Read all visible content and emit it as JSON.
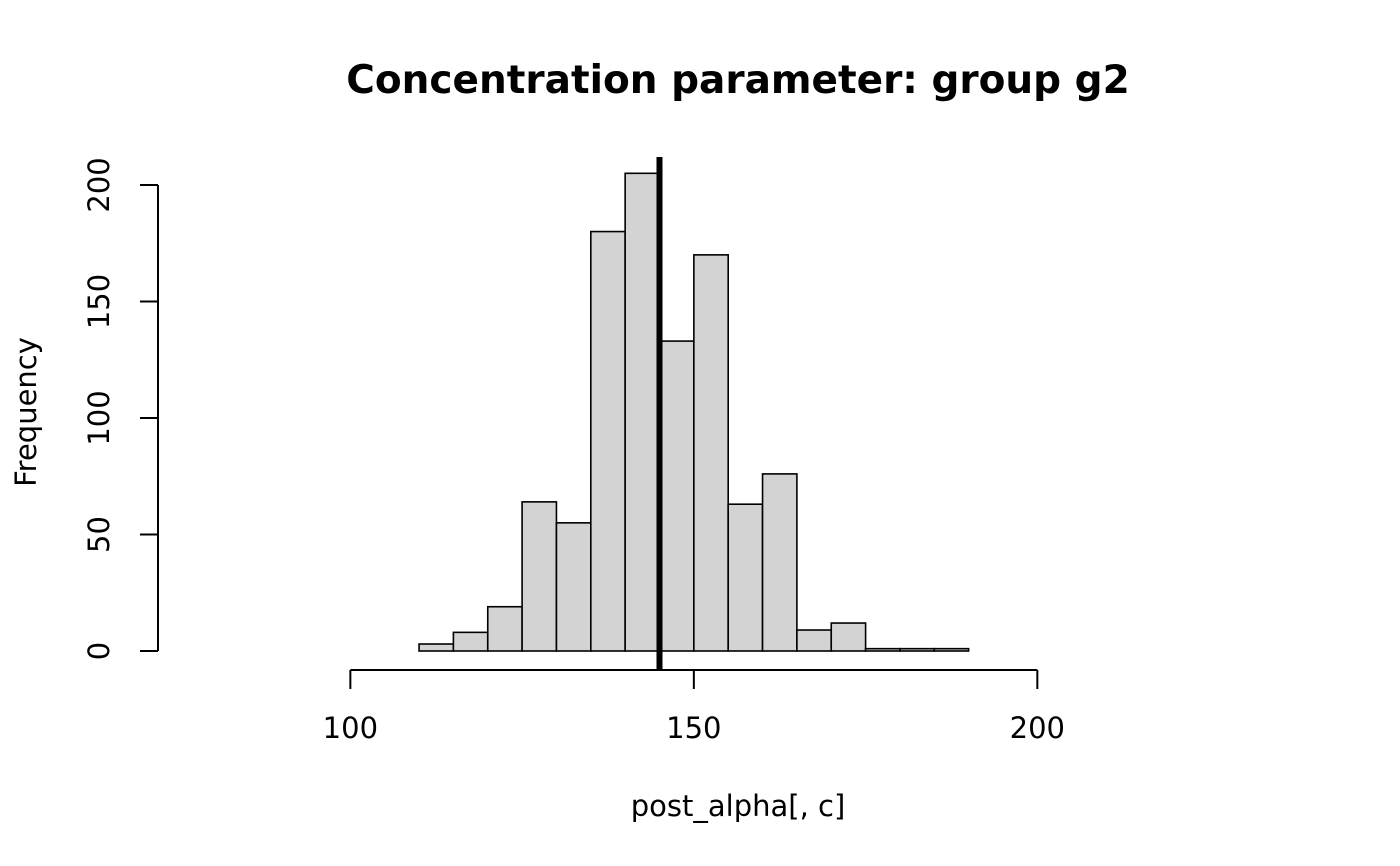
{
  "chart_data": {
    "type": "bar",
    "title": "Concentration parameter: group g2",
    "xlabel": "post_alpha[, c]",
    "ylabel": "Frequency",
    "bar_color": "#d3d3d3",
    "edge_color": "#000000",
    "xlim": [
      72,
      241
    ],
    "ylim": [
      0,
      212
    ],
    "x_ticks": [
      100,
      150,
      200
    ],
    "y_ticks": [
      0,
      50,
      100,
      150,
      200
    ],
    "bins": [
      {
        "x0": 110,
        "x1": 115,
        "count": 3
      },
      {
        "x0": 115,
        "x1": 120,
        "count": 8
      },
      {
        "x0": 120,
        "x1": 125,
        "count": 19
      },
      {
        "x0": 125,
        "x1": 130,
        "count": 64
      },
      {
        "x0": 130,
        "x1": 135,
        "count": 55
      },
      {
        "x0": 135,
        "x1": 140,
        "count": 180
      },
      {
        "x0": 140,
        "x1": 145,
        "count": 205
      },
      {
        "x0": 145,
        "x1": 150,
        "count": 133
      },
      {
        "x0": 150,
        "x1": 155,
        "count": 170
      },
      {
        "x0": 155,
        "x1": 160,
        "count": 63
      },
      {
        "x0": 160,
        "x1": 165,
        "count": 76
      },
      {
        "x0": 165,
        "x1": 170,
        "count": 9
      },
      {
        "x0": 170,
        "x1": 175,
        "count": 12
      },
      {
        "x0": 175,
        "x1": 180,
        "count": 1
      },
      {
        "x0": 180,
        "x1": 185,
        "count": 1
      },
      {
        "x0": 185,
        "x1": 190,
        "count": 1
      }
    ],
    "vertical_line": {
      "x": 145,
      "color": "#000000"
    },
    "grid": false,
    "legend": "none"
  }
}
